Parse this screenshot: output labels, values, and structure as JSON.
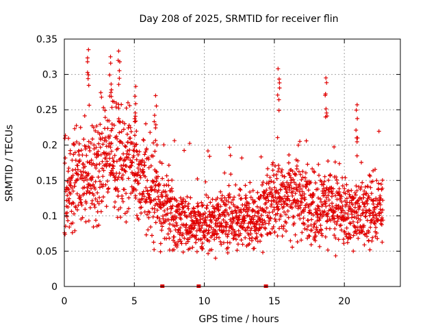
{
  "chart_data": {
    "type": "scatter",
    "title": "Day 208 of 2025, SRMTID for receiver flin",
    "xlabel": "GPS time / hours",
    "ylabel": "SRMTID / TECUs",
    "xlim": [
      0,
      24
    ],
    "ylim": [
      0,
      0.35
    ],
    "xticks": [
      {
        "value": 0,
        "label": "0"
      },
      {
        "value": 5,
        "label": "5"
      },
      {
        "value": 10,
        "label": "10"
      },
      {
        "value": 15,
        "label": "15"
      },
      {
        "value": 20,
        "label": "20"
      }
    ],
    "yticks": [
      {
        "value": 0,
        "label": "0"
      },
      {
        "value": 0.05,
        "label": "0.05"
      },
      {
        "value": 0.1,
        "label": "0.1"
      },
      {
        "value": 0.15,
        "label": "0.15"
      },
      {
        "value": 0.2,
        "label": "0.2"
      },
      {
        "value": 0.25,
        "label": "0.25"
      },
      {
        "value": 0.3,
        "label": "0.3"
      },
      {
        "value": 0.35,
        "label": "0.35"
      }
    ],
    "grid": true,
    "color": "#e00000",
    "marker": "plus",
    "data_gaps_x": [
      7.0,
      9.6,
      14.4
    ],
    "series": [
      {
        "name": "SRMTID",
        "envelope_hours": [
          0,
          1,
          2,
          3,
          4,
          5,
          6,
          7,
          8,
          9,
          10,
          11,
          12,
          13,
          14,
          15,
          16,
          17,
          18,
          19,
          20,
          21,
          22,
          22.8
        ],
        "envelope_mean": [
          0.135,
          0.145,
          0.16,
          0.18,
          0.19,
          0.17,
          0.14,
          0.12,
          0.095,
          0.09,
          0.085,
          0.09,
          0.095,
          0.095,
          0.1,
          0.12,
          0.13,
          0.12,
          0.11,
          0.12,
          0.1,
          0.1,
          0.11,
          0.11
        ],
        "peaks": [
          {
            "x": 1.7,
            "y": 0.335
          },
          {
            "x": 3.3,
            "y": 0.325
          },
          {
            "x": 3.9,
            "y": 0.333
          },
          {
            "x": 5.1,
            "y": 0.283
          },
          {
            "x": 6.5,
            "y": 0.27
          },
          {
            "x": 15.3,
            "y": 0.308
          },
          {
            "x": 18.7,
            "y": 0.295
          },
          {
            "x": 20.9,
            "y": 0.257
          }
        ]
      }
    ]
  }
}
